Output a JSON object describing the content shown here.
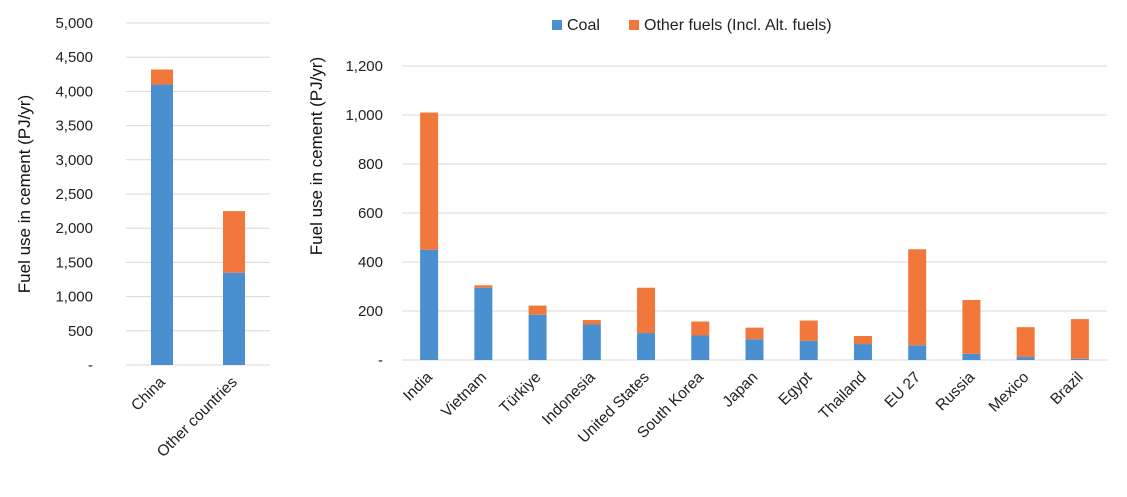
{
  "chart_data": [
    {
      "type": "bar",
      "stacked": true,
      "title": "",
      "xlabel": "",
      "ylabel": "Fuel use in cement (PJ/yr)",
      "ylim": [
        0,
        5000
      ],
      "yticks": [
        0,
        500,
        1000,
        1500,
        2000,
        2500,
        3000,
        3500,
        4000,
        4500,
        5000
      ],
      "ytick_labels": [
        "-",
        "500",
        "1,000",
        "1,500",
        "2,000",
        "2,500",
        "3,000",
        "3,500",
        "4,000",
        "4,500",
        "5,000"
      ],
      "grid": true,
      "categories": [
        "China",
        "Other countries"
      ],
      "series": [
        {
          "name": "Coal",
          "color": "#4a90d0",
          "values": [
            4100,
            1350
          ]
        },
        {
          "name": "Other fuels (Incl. Alt. fuels)",
          "color": "#f2773a",
          "values": [
            220,
            900
          ]
        }
      ]
    },
    {
      "type": "bar",
      "stacked": true,
      "title": "",
      "xlabel": "",
      "ylabel": "Fuel use in cement (PJ/yr)",
      "ylim": [
        0,
        1200
      ],
      "yticks": [
        0,
        200,
        400,
        600,
        800,
        1000,
        1200
      ],
      "ytick_labels": [
        "-",
        "200",
        "400",
        "600",
        "800",
        "1,000",
        "1,200"
      ],
      "grid": true,
      "legend_position": "top-center",
      "legend": [
        "Coal",
        "Other fuels (Incl. Alt. fuels)"
      ],
      "categories": [
        "India",
        "Vietnam",
        "Türkiye",
        "Indonesia",
        "United States",
        "South Korea",
        "Japan",
        "Egypt",
        "Thailand",
        "EU 27",
        "Russia",
        "Mexico",
        "Brazil"
      ],
      "series": [
        {
          "name": "Coal",
          "color": "#4a90d0",
          "values": [
            450,
            295,
            185,
            145,
            110,
            100,
            85,
            78,
            65,
            60,
            25,
            12,
            5
          ]
        },
        {
          "name": "Other fuels (Incl. Alt. fuels)",
          "color": "#f2773a",
          "values": [
            560,
            10,
            37,
            18,
            185,
            57,
            47,
            83,
            33,
            392,
            220,
            122,
            162
          ]
        }
      ]
    }
  ]
}
